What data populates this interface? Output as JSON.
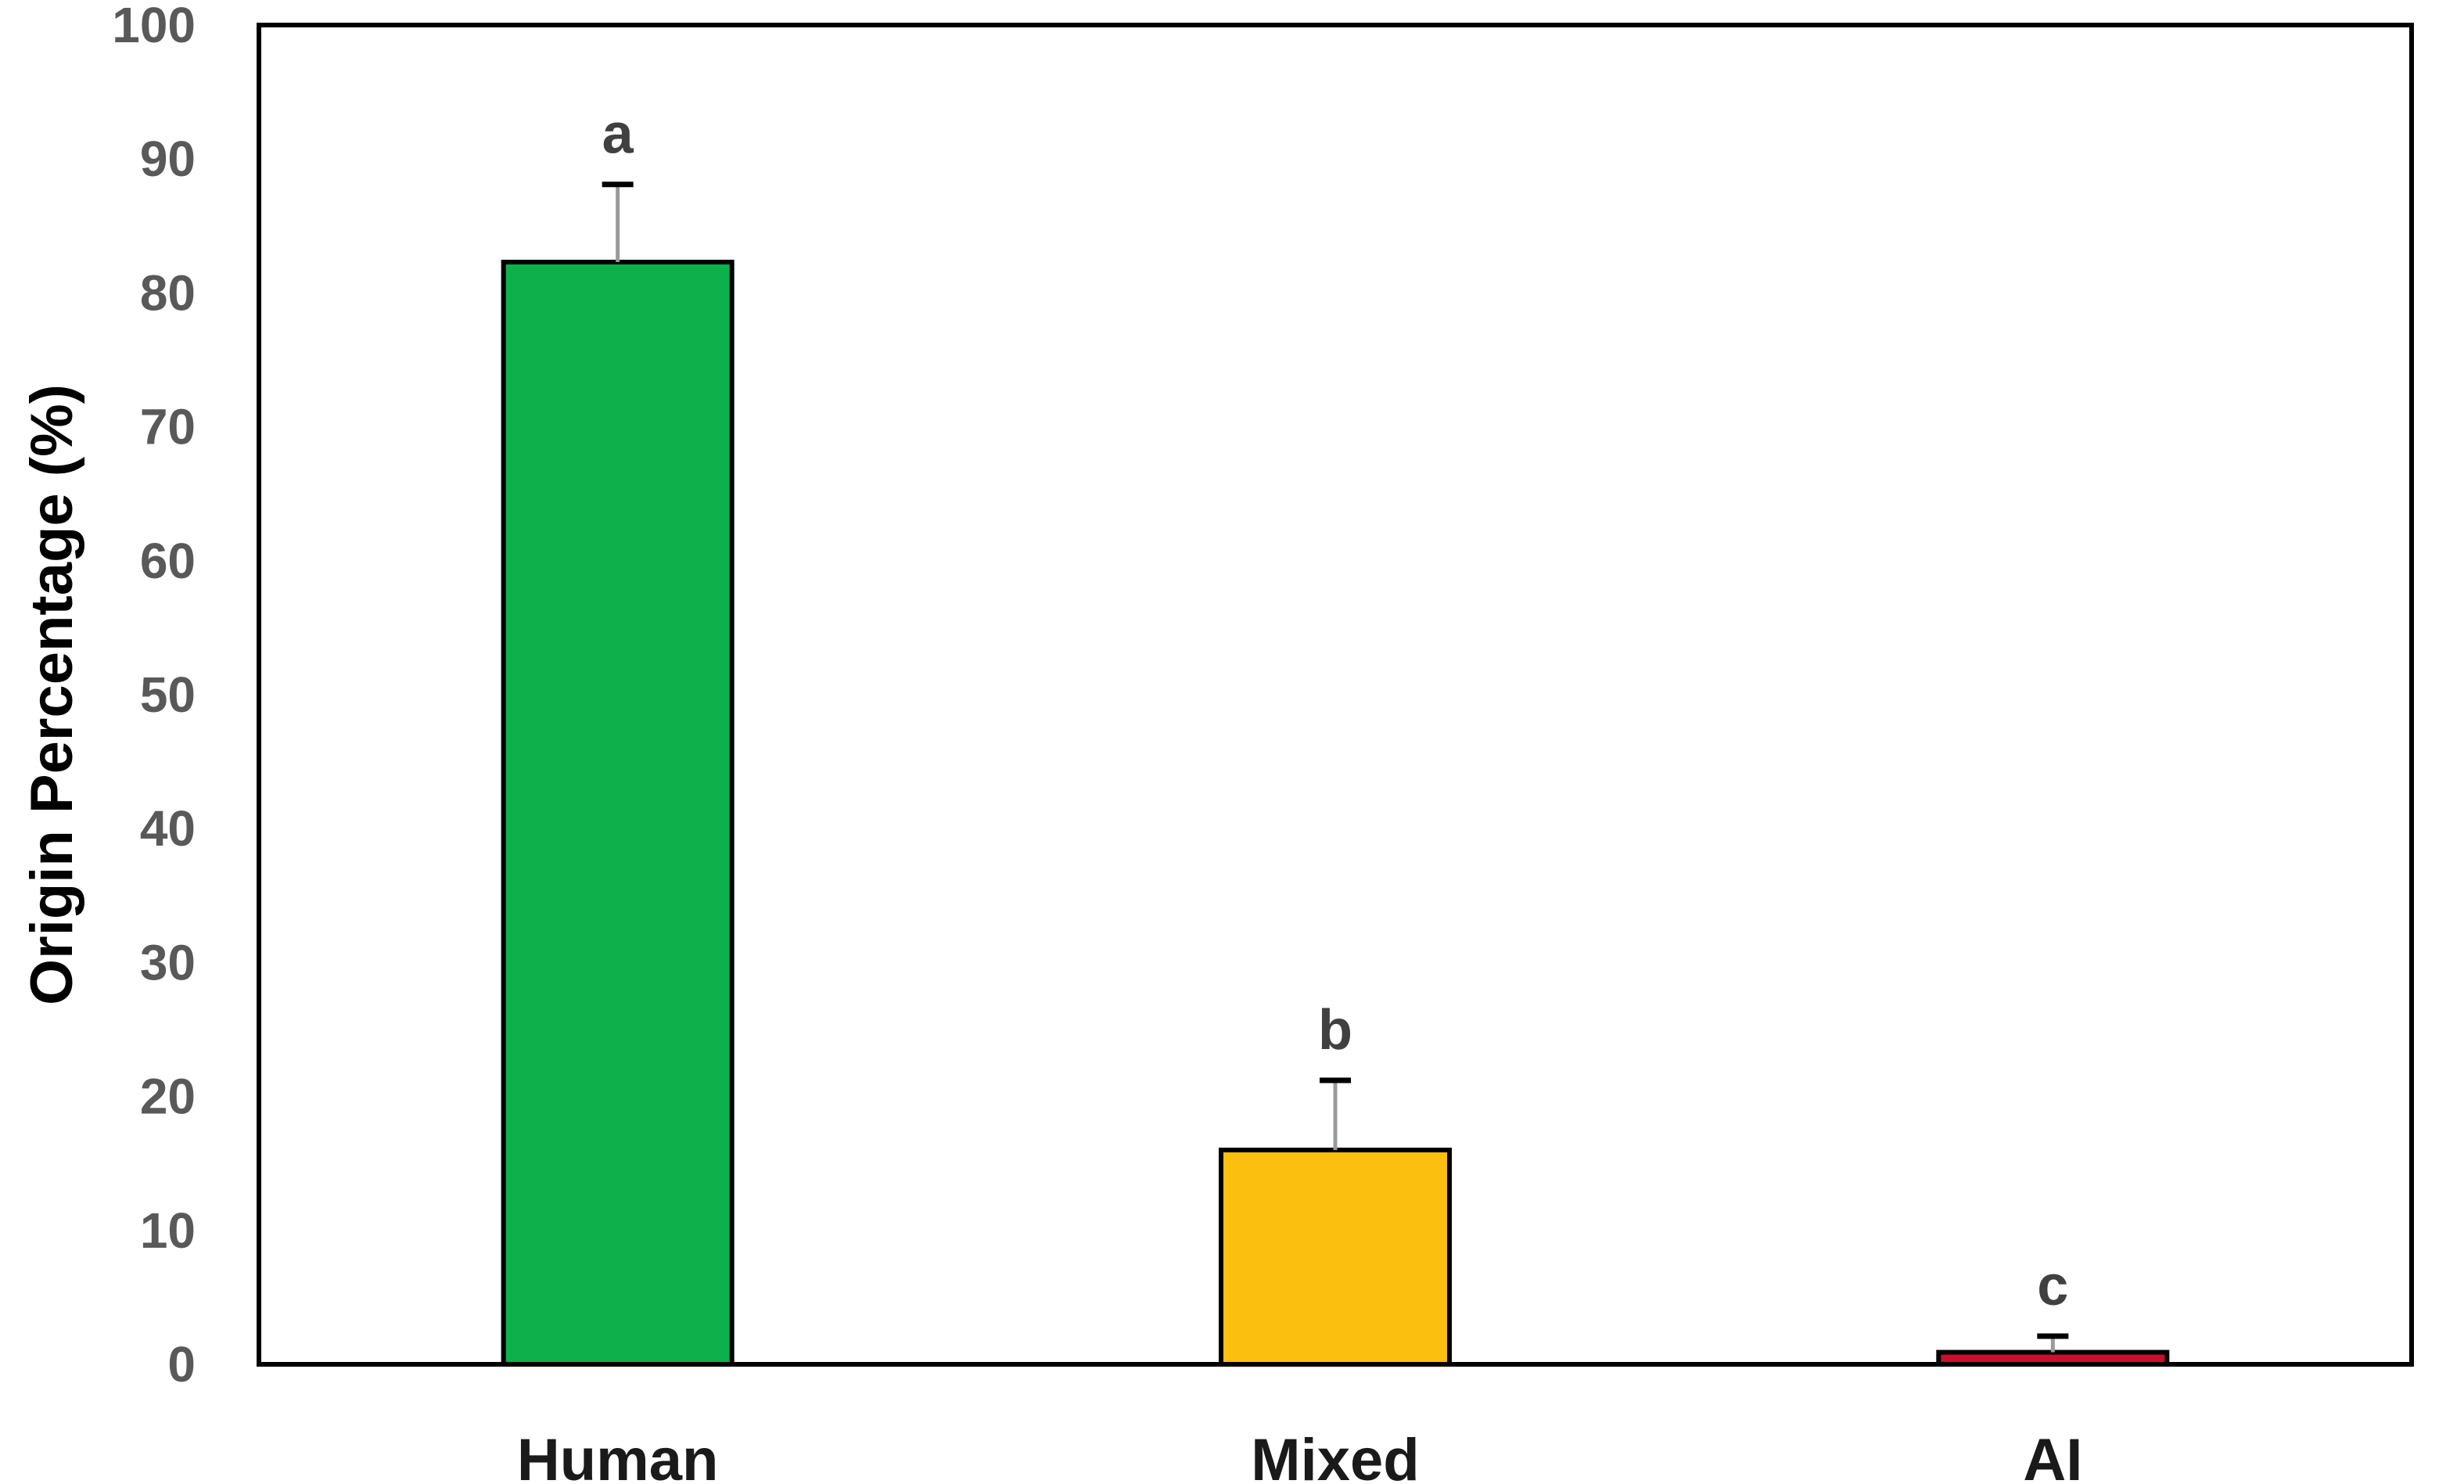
{
  "chart_data": {
    "type": "bar",
    "title": "",
    "xlabel": "",
    "ylabel": "Origin Percentage (%)",
    "ylim": [
      0,
      100
    ],
    "yticks": [
      0,
      10,
      20,
      30,
      40,
      50,
      60,
      70,
      80,
      90,
      100
    ],
    "ytick_labels": [
      "0",
      "10",
      "20",
      "30",
      "40",
      "50",
      "60",
      "70",
      "80",
      "90",
      "100"
    ],
    "categories": [
      "Human",
      "Mixed",
      "AI"
    ],
    "values": [
      82.3,
      16.0,
      0.9
    ],
    "error_upper": [
      5.8,
      5.2,
      1.2
    ],
    "significance_letters": [
      "a",
      "b",
      "c"
    ],
    "bar_colors": [
      "#0db04b",
      "#fbbf0f",
      "#c8102e"
    ],
    "bar_edge_color": "#000000",
    "grid": false,
    "legend": "none"
  }
}
